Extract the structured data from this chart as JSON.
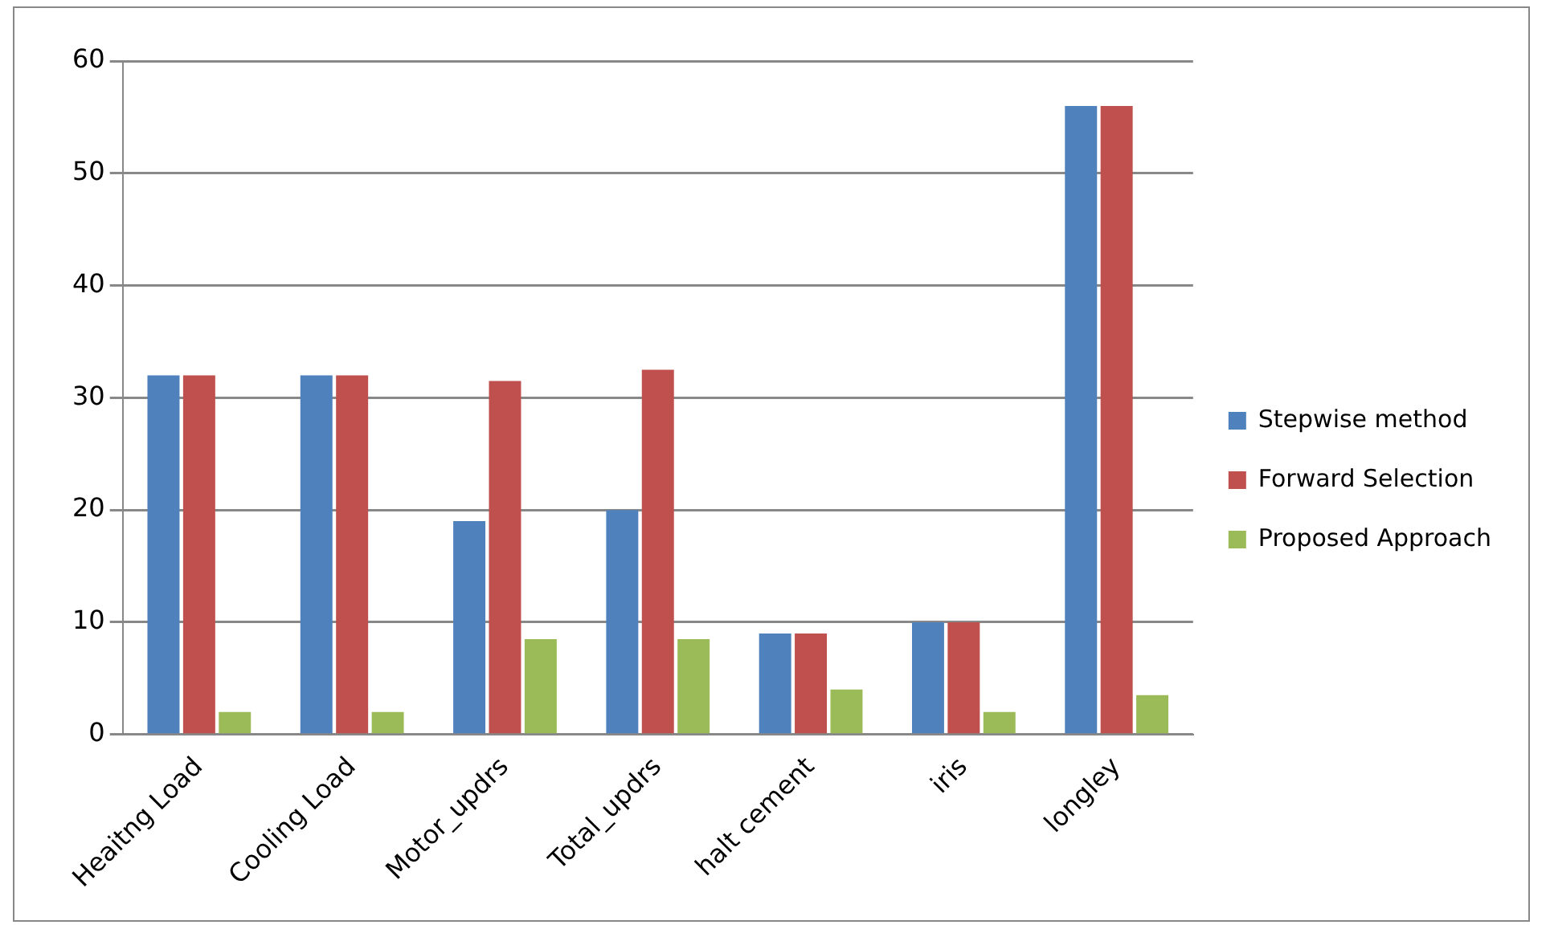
{
  "chart_data": {
    "type": "bar",
    "categories": [
      "Heaitng Load",
      "Cooling Load",
      "Motor_updrs",
      "Total_updrs",
      "halt cement",
      "iris",
      "longley"
    ],
    "series": [
      {
        "name": "Stepwise method",
        "color": "#4f81bd",
        "values": [
          32,
          32,
          19,
          20,
          9,
          10,
          56
        ]
      },
      {
        "name": "Forward Selection",
        "color": "#c0504d",
        "values": [
          32,
          32,
          31.5,
          32.5,
          9,
          10,
          56
        ]
      },
      {
        "name": "Proposed Approach",
        "color": "#9bbb59",
        "values": [
          2,
          2,
          8.5,
          8.5,
          4,
          2,
          3.5
        ]
      }
    ],
    "ylim": [
      0,
      60
    ],
    "yticks": [
      0,
      10,
      20,
      30,
      40,
      50,
      60
    ],
    "grid": "y",
    "legend": "right"
  }
}
